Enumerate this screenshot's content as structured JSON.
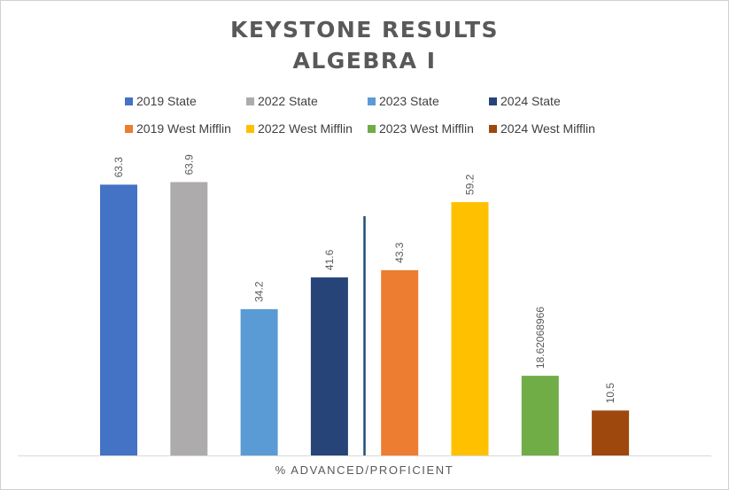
{
  "chart_data": {
    "type": "bar",
    "title": [
      "KEYSTONE RESULTS",
      "ALGEBRA I"
    ],
    "xlabel": "% ADVANCED/PROFICIENT",
    "ylabel": "",
    "ylim": [
      0,
      70
    ],
    "grid": false,
    "legend_position": "top",
    "categories": [
      "% ADVANCED/PROFICIENT"
    ],
    "series": [
      {
        "name": "2019 State",
        "values": [
          63.3
        ],
        "label": "63.3",
        "color": "#4472C4"
      },
      {
        "name": "2022 State",
        "values": [
          63.9
        ],
        "label": "63.9",
        "color": "#ADABAB"
      },
      {
        "name": "2023 State",
        "values": [
          34.2
        ],
        "label": "34.2",
        "color": "#5B9BD5"
      },
      {
        "name": "2024 State",
        "values": [
          41.6
        ],
        "label": "41.6",
        "color": "#264478"
      },
      {
        "name": "2019 West Mifflin",
        "values": [
          43.3
        ],
        "label": "43.3",
        "color": "#ED7D31"
      },
      {
        "name": "2022 West Mifflin",
        "values": [
          59.2
        ],
        "label": "59.2",
        "color": "#FFC000"
      },
      {
        "name": "2023 West Mifflin",
        "values": [
          18.62068966
        ],
        "label": "18.62068966",
        "color": "#70AD47"
      },
      {
        "name": "2024 West Mifflin",
        "values": [
          10.5
        ],
        "label": "10.5",
        "color": "#9E480E"
      }
    ],
    "divider": {
      "after_series_index": 3,
      "color": "#1F4E79"
    }
  }
}
